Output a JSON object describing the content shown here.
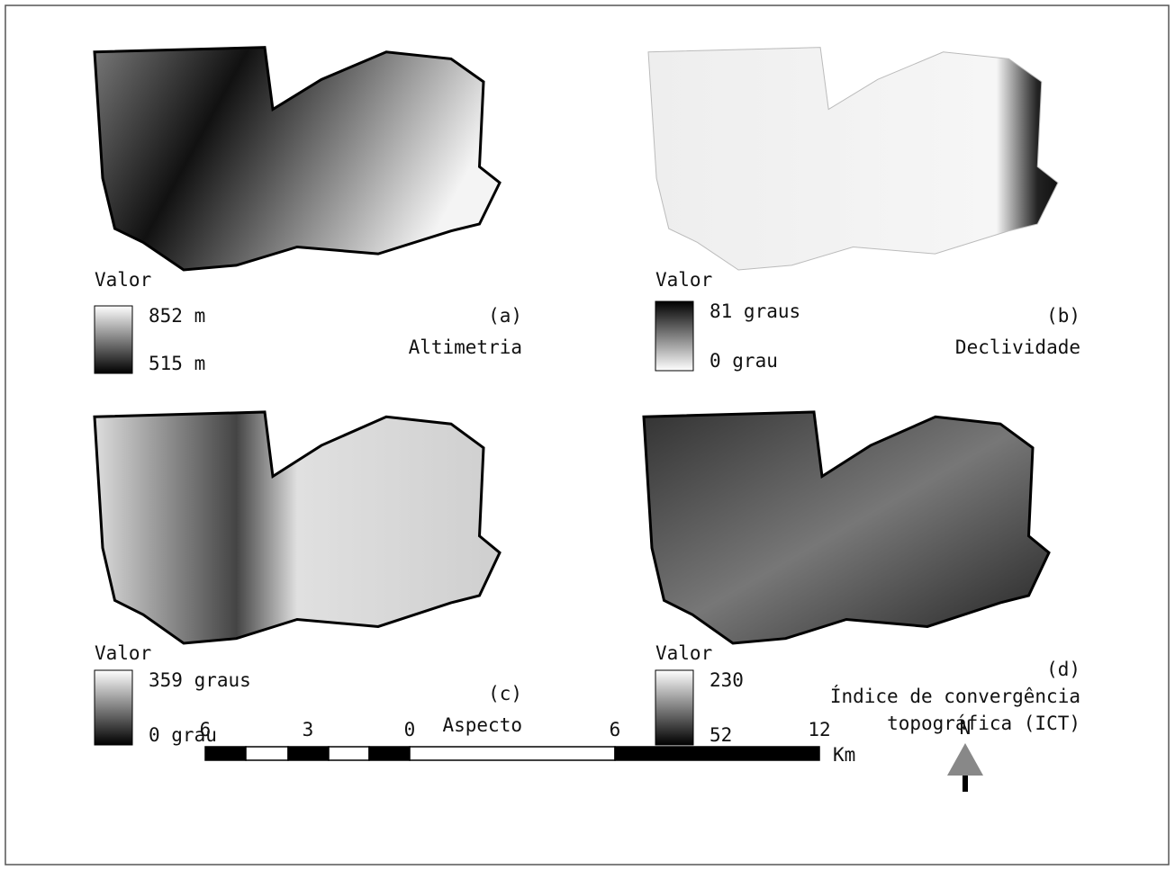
{
  "panels": [
    {
      "label": "(a)",
      "title": [
        "Altimetria"
      ],
      "legend_title": "Valor",
      "legend_max": "852 m",
      "legend_min": "515 m"
    },
    {
      "label": "(b)",
      "title": [
        "Declividade"
      ],
      "legend_title": "Valor",
      "legend_max": "81 graus",
      "legend_min": "0 grau"
    },
    {
      "label": "(c)",
      "title": [
        "Aspecto"
      ],
      "legend_title": "Valor",
      "legend_max": "359 graus",
      "legend_min": "0 grau"
    },
    {
      "label": "(d)",
      "title": [
        "Índice de convergência",
        "topográfica (ICT)"
      ],
      "legend_title": "Valor",
      "legend_max": "230",
      "legend_min": "52"
    }
  ],
  "scale_bar": {
    "ticks": [
      "6",
      "3",
      "0",
      "6",
      "12"
    ],
    "unit": "Km"
  },
  "north": "N"
}
